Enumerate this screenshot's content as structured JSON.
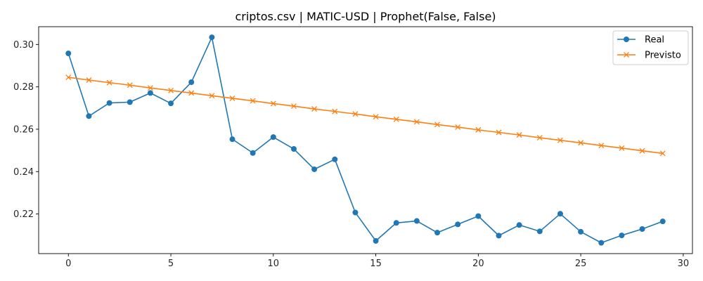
{
  "chart_data": {
    "type": "line",
    "title": "criptos.csv | MATIC-USD | Prophet(False, False)",
    "xlabel": "",
    "ylabel": "",
    "x": [
      0,
      1,
      2,
      3,
      4,
      5,
      6,
      7,
      8,
      9,
      10,
      11,
      12,
      13,
      14,
      15,
      16,
      17,
      18,
      19,
      20,
      21,
      22,
      23,
      24,
      25,
      26,
      27,
      28,
      29
    ],
    "xlim": [
      -1.45,
      30.45
    ],
    "ylim": [
      0.2013,
      0.3084
    ],
    "xticks": [
      0,
      5,
      10,
      15,
      20,
      25,
      30
    ],
    "yticks": [
      0.22,
      0.24,
      0.26,
      0.28,
      0.3
    ],
    "ytick_labels": [
      "0.22",
      "0.24",
      "0.26",
      "0.28",
      "0.30"
    ],
    "grid": false,
    "legend_position": "top-right",
    "series": [
      {
        "name": "Real",
        "color": "#1f77b4",
        "marker": "circle",
        "values": [
          0.2958,
          0.2662,
          0.2724,
          0.2728,
          0.2771,
          0.2722,
          0.2822,
          0.3034,
          0.2553,
          0.2488,
          0.2563,
          0.2507,
          0.2411,
          0.2458,
          0.2207,
          0.2073,
          0.2158,
          0.2167,
          0.2112,
          0.2151,
          0.219,
          0.2098,
          0.2148,
          0.2118,
          0.2201,
          0.2116,
          0.2064,
          0.2099,
          0.2129,
          0.2165
        ]
      },
      {
        "name": "Previsto",
        "color": "#ff7f0e",
        "marker": "x",
        "values": [
          0.2845,
          0.2832,
          0.282,
          0.2808,
          0.2795,
          0.2783,
          0.2771,
          0.2758,
          0.2746,
          0.2734,
          0.2721,
          0.2709,
          0.2696,
          0.2684,
          0.2672,
          0.2659,
          0.2647,
          0.2635,
          0.2622,
          0.261,
          0.2597,
          0.2585,
          0.2573,
          0.256,
          0.2548,
          0.2536,
          0.2523,
          0.2511,
          0.2498,
          0.2486
        ]
      }
    ]
  }
}
